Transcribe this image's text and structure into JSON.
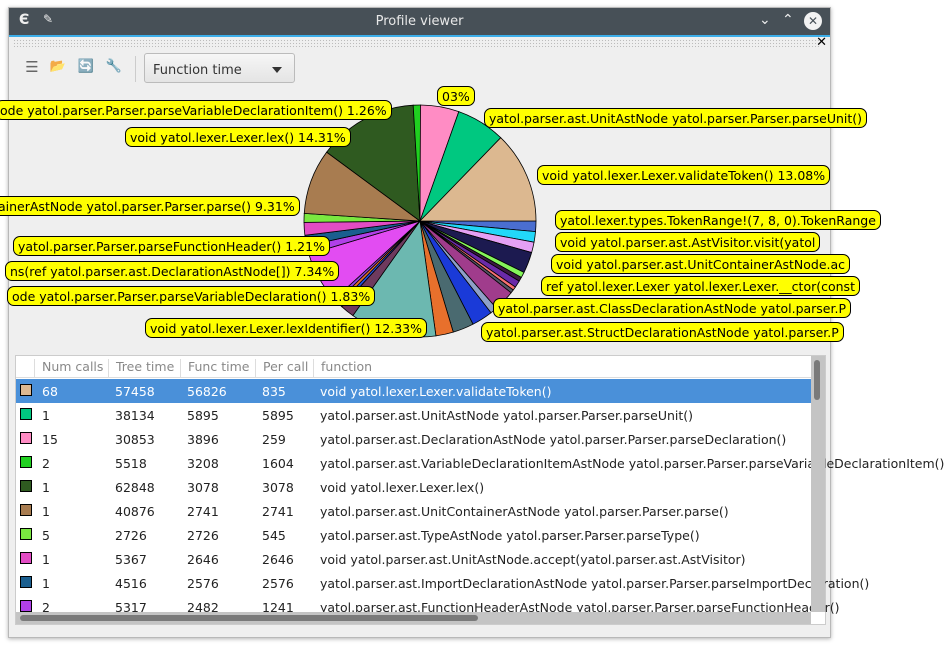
{
  "window": {
    "title": "Profile viewer",
    "app_icon": "app-logo-icon",
    "pin_icon": "pin-icon",
    "minimize_icon": "chevron-down-icon",
    "maximize_icon": "chevron-up-icon",
    "close_icon": "close-circle-icon",
    "dock_close": "✕"
  },
  "toolbar": {
    "tools": [
      {
        "name": "new-document-icon",
        "glyph": "☰"
      },
      {
        "name": "open-folder-icon",
        "glyph": "📂"
      },
      {
        "name": "refresh-icon",
        "glyph": "🔄"
      },
      {
        "name": "settings-wrench-icon",
        "glyph": "🔧"
      }
    ],
    "combo_value": "Function time"
  },
  "chart_data": {
    "type": "pie",
    "slices": [
      {
        "color": "#4a6ed0",
        "pct": 1.5
      },
      {
        "color": "#22d8f8",
        "pct": 1.5
      },
      {
        "color": "#e4a0f4",
        "pct": 1.5
      },
      {
        "color": "#1c1a50",
        "pct": 3
      },
      {
        "color": "#84f45a",
        "pct": 0.8
      },
      {
        "color": "#3a1a40",
        "pct": 0.6
      },
      {
        "color": "#6a2aa8",
        "pct": 1
      },
      {
        "color": "#f87171",
        "pct": 0.5
      },
      {
        "color": "#555566",
        "pct": 0.5
      },
      {
        "color": "#a03c8c",
        "pct": 3
      },
      {
        "color": "#8ea0c8",
        "pct": 1
      },
      {
        "color": "#1a3ad8",
        "pct": 3
      },
      {
        "color": "#4a6a70",
        "pct": 3
      },
      {
        "color": "#e8702c",
        "pct": 2.5
      },
      {
        "color": "#6cb8b0",
        "pct": 12.33
      },
      {
        "color": "#6e3a5e",
        "pct": 2
      },
      {
        "color": "#2050e0",
        "pct": 0.5
      },
      {
        "color": "#e8702c",
        "pct": 0.5
      },
      {
        "color": "#9040e0",
        "pct": 0.5
      },
      {
        "color": "#e24cf2",
        "pct": 7.34
      },
      {
        "color": "#b040e8",
        "pct": 1.21
      },
      {
        "color": "#1a5f8f",
        "pct": 1.5
      },
      {
        "color": "#e24cc4",
        "pct": 1.83
      },
      {
        "color": "#7ae840",
        "pct": 1.26
      },
      {
        "color": "#a87c50",
        "pct": 9.31
      },
      {
        "color": "#2f5a20",
        "pct": 14.31
      },
      {
        "color": "#20d020",
        "pct": 1.03
      },
      {
        "color": "#ff8cc4",
        "pct": 5.5
      },
      {
        "color": "#00c880",
        "pct": 7
      },
      {
        "color": "#dcb890",
        "pct": 13.08
      }
    ],
    "labels": [
      "ode yatol.parser.Parser.parseVariableDeclarationItem() 1.26%",
      "03%",
      "void yatol.lexer.Lexer.lex() 14.31%",
      "yatol.parser.ast.UnitAstNode yatol.parser.Parser.parseUnit()",
      "void yatol.lexer.Lexer.validateToken() 13.08%",
      "ainerAstNode yatol.parser.Parser.parse() 9.31%",
      "yatol.lexer.types.TokenRange!(7, 8, 0).TokenRange",
      "void yatol.parser.ast.AstVisitor.visit(yatol",
      "void yatol.parser.ast.UnitContainerAstNode.ac",
      "ref yatol.lexer.Lexer yatol.lexer.Lexer.__ctor(const",
      "yatol.parser.Parser.parseFunctionHeader() 1.21%",
      "ns(ref yatol.parser.ast.DeclarationAstNode[]) 7.34%",
      "ode yatol.parser.Parser.parseVariableDeclaration() 1.83%",
      "void yatol.lexer.Lexer.lexIdentifier() 12.33%",
      "yatol.parser.ast.ClassDeclarationAstNode yatol.parser.P",
      "yatol.parser.ast.StructDeclarationAstNode yatol.parser.P"
    ]
  },
  "table": {
    "headers": [
      "Num calls",
      "Tree time",
      "Func time",
      "Per call",
      "function"
    ],
    "rows": [
      {
        "color": "#dcb890",
        "calls": "68",
        "tree": "57458",
        "func": "56826",
        "per": "835",
        "fn": "void yatol.lexer.Lexer.validateToken()"
      },
      {
        "color": "#00c880",
        "calls": "1",
        "tree": "38134",
        "func": "5895",
        "per": "5895",
        "fn": "yatol.parser.ast.UnitAstNode yatol.parser.Parser.parseUnit()"
      },
      {
        "color": "#ff8cc4",
        "calls": "15",
        "tree": "30853",
        "func": "3896",
        "per": "259",
        "fn": "yatol.parser.ast.DeclarationAstNode yatol.parser.Parser.parseDeclaration()"
      },
      {
        "color": "#20d020",
        "calls": "2",
        "tree": "5518",
        "func": "3208",
        "per": "1604",
        "fn": "yatol.parser.ast.VariableDeclarationItemAstNode yatol.parser.Parser.parseVariableDeclarationItem()"
      },
      {
        "color": "#2f5a20",
        "calls": "1",
        "tree": "62848",
        "func": "3078",
        "per": "3078",
        "fn": "void yatol.lexer.Lexer.lex()"
      },
      {
        "color": "#a87c50",
        "calls": "1",
        "tree": "40876",
        "func": "2741",
        "per": "2741",
        "fn": "yatol.parser.ast.UnitContainerAstNode yatol.parser.Parser.parse()"
      },
      {
        "color": "#7ae840",
        "calls": "5",
        "tree": "2726",
        "func": "2726",
        "per": "545",
        "fn": "yatol.parser.ast.TypeAstNode yatol.parser.Parser.parseType()"
      },
      {
        "color": "#e24cc4",
        "calls": "1",
        "tree": "5367",
        "func": "2646",
        "per": "2646",
        "fn": "void yatol.parser.ast.UnitAstNode.accept(yatol.parser.ast.AstVisitor)"
      },
      {
        "color": "#1a5f8f",
        "calls": "1",
        "tree": "4516",
        "func": "2576",
        "per": "2576",
        "fn": "yatol.parser.ast.ImportDeclarationAstNode yatol.parser.Parser.parseImportDeclaration()"
      },
      {
        "color": "#b040e8",
        "calls": "2",
        "tree": "5317",
        "func": "2482",
        "per": "1241",
        "fn": "yatol.parser.ast.FunctionHeaderAstNode yatol.parser.Parser.parseFunctionHeader()"
      }
    ],
    "selected_row": 0
  }
}
